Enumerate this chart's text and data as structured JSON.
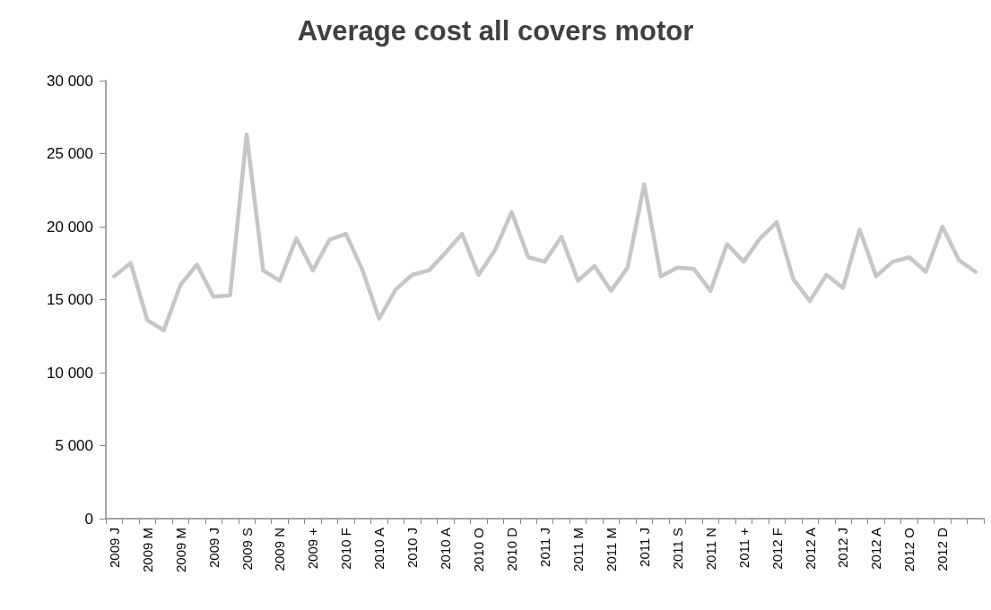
{
  "chart_data": {
    "type": "line",
    "title": "Average cost all covers motor",
    "categories": [
      "2009 J",
      null,
      "2009 M",
      null,
      "2009 M",
      null,
      "2009 J",
      null,
      "2009 S",
      null,
      "2009 N",
      null,
      "2009 +",
      null,
      "2010 F",
      null,
      "2010 A",
      null,
      "2010 J",
      null,
      "2010 A",
      null,
      "2010 O",
      null,
      "2010 D",
      null,
      "2011 J",
      null,
      "2011 M",
      null,
      "2011 M",
      null,
      "2011 J",
      null,
      "2011 S",
      null,
      "2011 N",
      null,
      "2011 +",
      null,
      "2012 F",
      null,
      "2012 A",
      null,
      "2012 J",
      null,
      "2012 A",
      null,
      "2012 O",
      null,
      "2012 D",
      null,
      null
    ],
    "series": [
      {
        "color": "#c6c6c6",
        "values": [
          16600,
          17500,
          13600,
          12900,
          16000,
          17400,
          15200,
          15300,
          26300,
          17000,
          16300,
          19200,
          17000,
          19100,
          19500,
          17000,
          13700,
          15700,
          16700,
          17000,
          18200,
          19500,
          16700,
          18400,
          21000,
          17900,
          17600,
          19300,
          16300,
          17300,
          15600,
          17200,
          22900,
          16600,
          17200,
          17100,
          15600,
          18800,
          17600,
          19200,
          20300,
          16400,
          14900,
          16700,
          15800,
          19800,
          16600,
          17600,
          17900,
          16900,
          20000,
          17700,
          16900
        ]
      }
    ],
    "ylim": [
      0,
      30000
    ],
    "yticks": [
      {
        "value": 0,
        "label": "0"
      },
      {
        "value": 5000,
        "label": "5 000"
      },
      {
        "value": 10000,
        "label": "10 000"
      },
      {
        "value": 15000,
        "label": "15 000"
      },
      {
        "value": 20000,
        "label": "20 000"
      },
      {
        "value": 25000,
        "label": "25 000"
      },
      {
        "value": 30000,
        "label": "30 000"
      }
    ],
    "grid": false,
    "marker": "none",
    "line_style": "solid"
  }
}
